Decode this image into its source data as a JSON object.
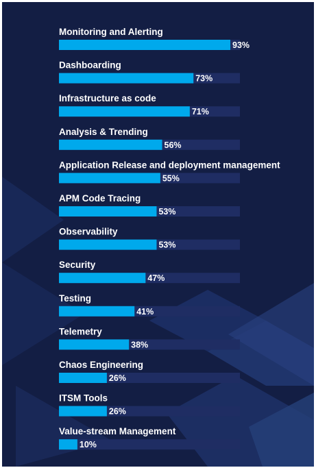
{
  "chart_data": {
    "type": "bar",
    "orientation": "horizontal",
    "categories": [
      "Monitoring and Alerting",
      "Dashboarding",
      "Infrastructure as code",
      "Analysis & Trending",
      "Application Release and deployment management",
      "APM Code Tracing",
      "Observability",
      "Security",
      "Testing",
      "Telemetry",
      "Chaos Engineering",
      "ITSM Tools",
      "Value-stream Management"
    ],
    "values": [
      93,
      73,
      71,
      56,
      55,
      53,
      53,
      47,
      41,
      38,
      26,
      26,
      10
    ],
    "value_labels": [
      "93%",
      "73%",
      "71%",
      "56%",
      "55%",
      "53%",
      "53%",
      "47%",
      "41%",
      "38%",
      "26%",
      "26%",
      "10%"
    ],
    "unit": "%",
    "xlim": [
      0,
      100
    ],
    "title": "",
    "xlabel": "",
    "ylabel": "",
    "grid": false,
    "legend": "none"
  },
  "colors": {
    "background": "#131e44",
    "bar": "#00a9ec",
    "track": "#1f2d63",
    "text": "#ffffff"
  }
}
